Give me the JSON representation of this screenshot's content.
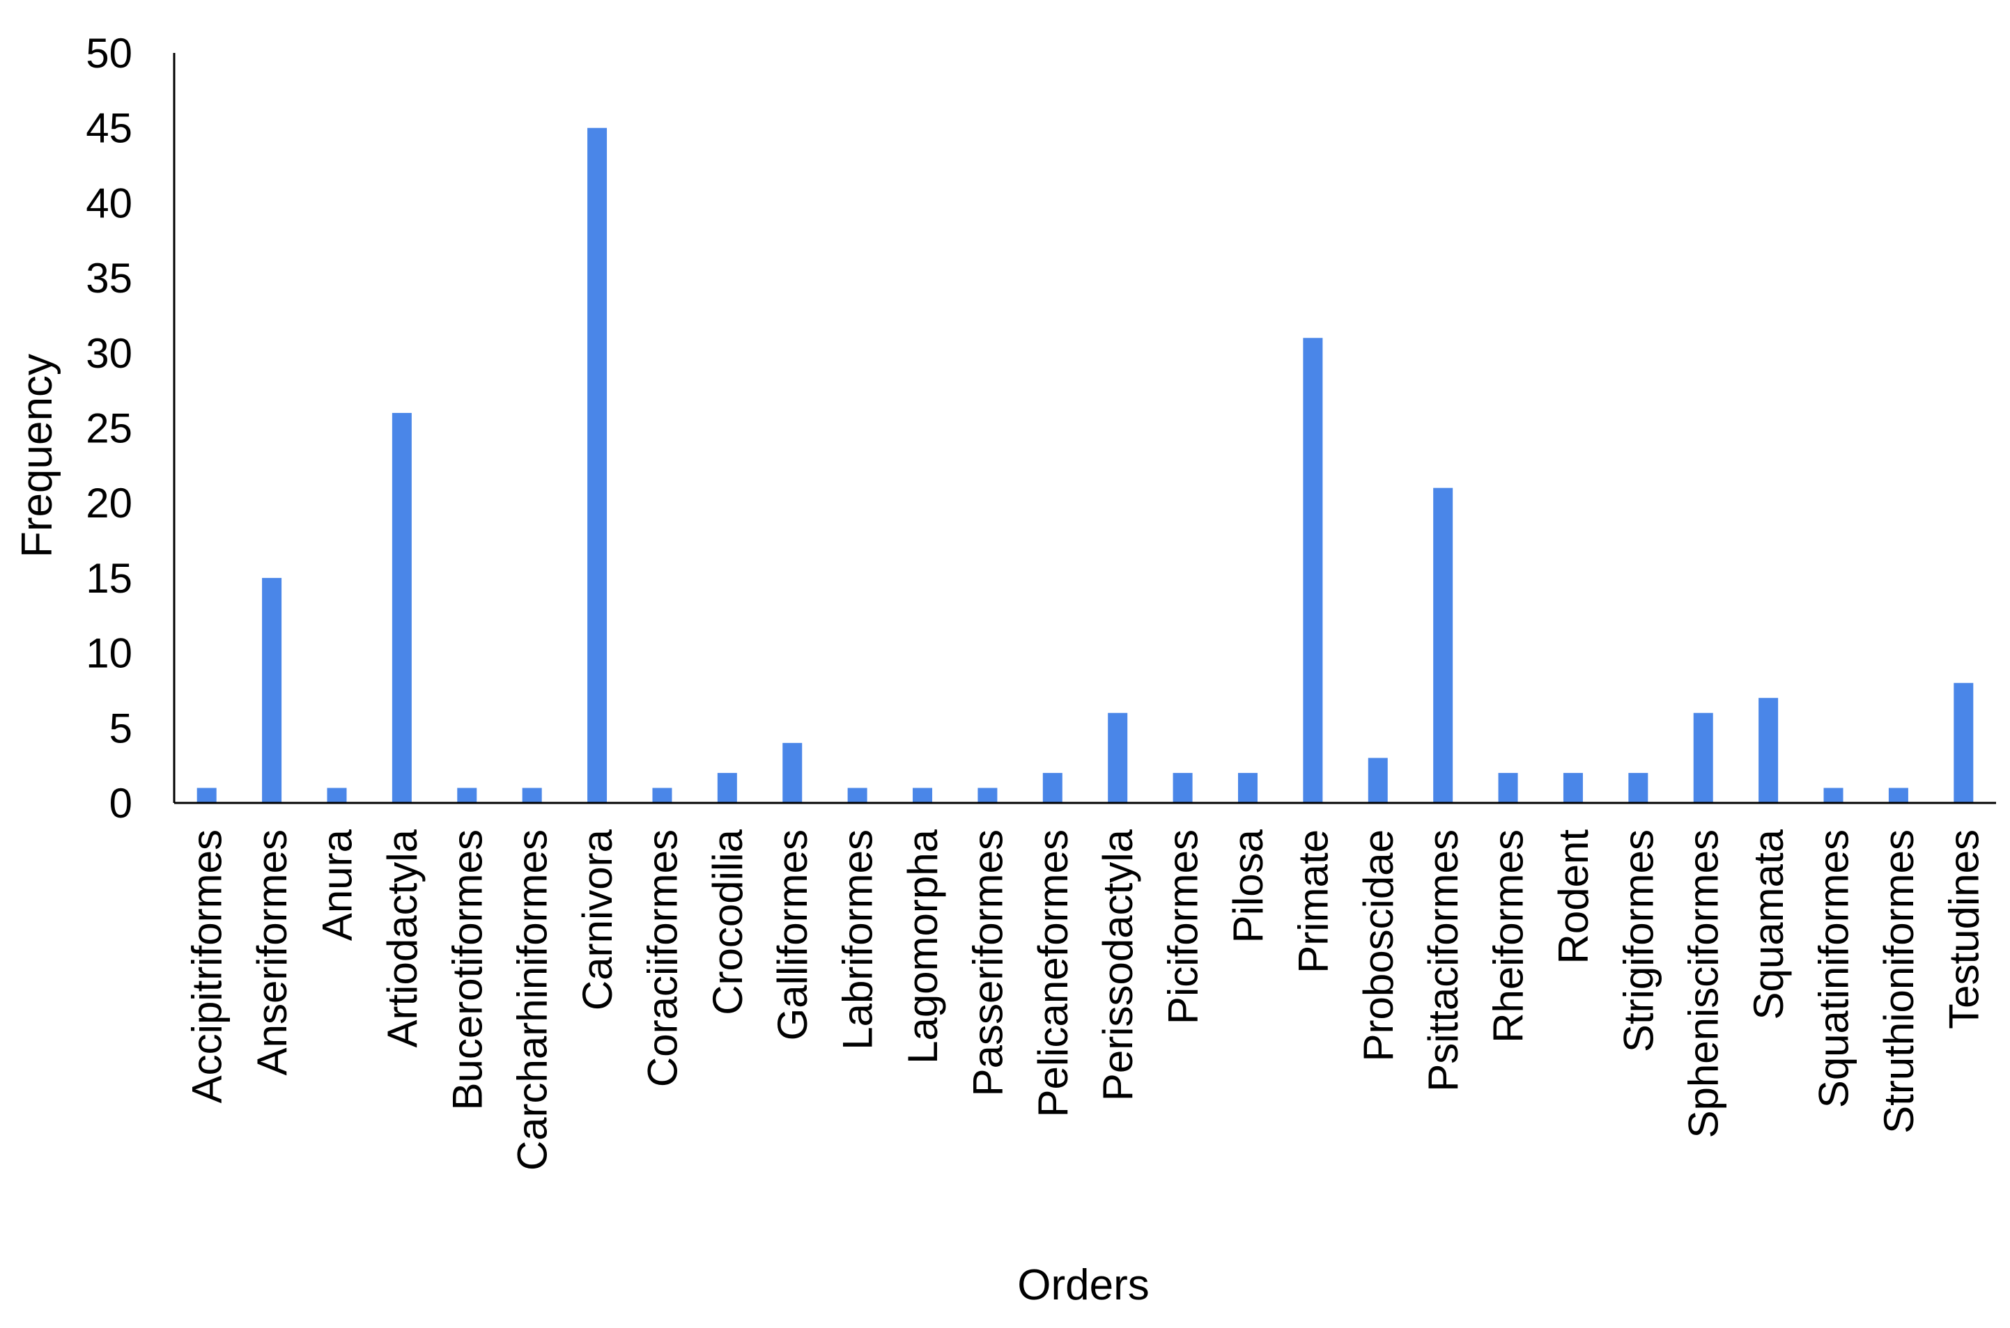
{
  "chart_data": {
    "type": "bar",
    "title": "",
    "xlabel": "Orders",
    "ylabel": "Frequency",
    "ylim": [
      0,
      50
    ],
    "yticks": [
      "0",
      "5",
      "10",
      "15",
      "20",
      "25",
      "30",
      "35",
      "40",
      "45",
      "50"
    ],
    "grid": false,
    "legend": "none",
    "bar_color": "#4A86E8",
    "categories": [
      "Accipitriformes",
      "Anseriformes",
      "Anura",
      "Artiodactyla",
      "Bucerotiformes",
      "Carcharhiniformes",
      "Carnivora",
      "Coraciiformes",
      "Crocodilia",
      "Galliformes",
      "Labriformes",
      "Lagomorpha",
      "Passeriformes",
      "Pelicaneformes",
      "Perissodactyla",
      "Piciformes",
      "Pilosa",
      "Primate",
      "Proboscidae",
      "Psittaciformes",
      "Rheiformes",
      "Rodent",
      "Strigiformes",
      "Sphenisciformes",
      "Squamata",
      "Squatiniformes",
      "Struthioniformes",
      "Testudines"
    ],
    "values": [
      1,
      15,
      1,
      26,
      1,
      1,
      45,
      1,
      2,
      4,
      1,
      1,
      1,
      2,
      6,
      2,
      2,
      31,
      3,
      21,
      2,
      2,
      2,
      6,
      7,
      1,
      1,
      8
    ]
  }
}
